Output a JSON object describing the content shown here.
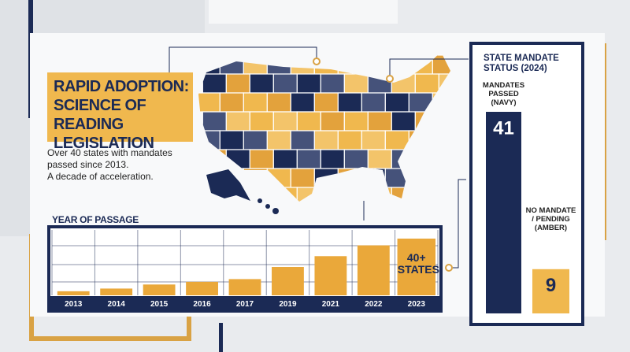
{
  "title": "RAPID ADOPTION: SCIENCE OF READING LEGISLATION",
  "description": [
    "Over 40 states with mandates",
    "passed since 2013.",
    "A decade of acceleration."
  ],
  "chart_data": [
    {
      "type": "bar",
      "title": "YEAR OF PASSAGE",
      "categories": [
        "2013",
        "2014",
        "2015",
        "2016",
        "2017",
        "2019",
        "2021",
        "2022",
        "2023"
      ],
      "values": [
        3,
        5,
        8,
        10,
        12,
        21,
        29,
        37,
        42
      ],
      "color": "#eaa83a",
      "annotation": "40+ STATES"
    },
    {
      "type": "bar",
      "title": "STATE MANDATE STATUS (2024)",
      "categories": [
        "MANDATES PASSED (NAVY)",
        "NO MANDATE / PENDING (AMBER)"
      ],
      "values": [
        41,
        9
      ],
      "colors": [
        "#1b2a55",
        "#f0b84e"
      ]
    }
  ]
}
